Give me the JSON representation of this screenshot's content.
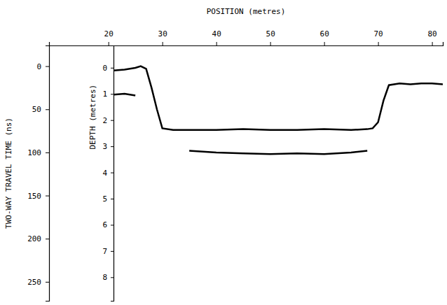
{
  "chart_data": {
    "type": "line",
    "x_label": "POSITION (metres)",
    "y_label": "TWO-WAY TRAVEL TIME (ns)",
    "y2_label": "DEPTH (metres)",
    "xlim": [
      9,
      82
    ],
    "xticks": [
      20,
      30,
      40,
      50,
      60,
      70,
      80
    ],
    "ylim": [
      -24,
      272
    ],
    "yticks": [
      0,
      50,
      100,
      150,
      200,
      250
    ],
    "y2lim": [
      -0.85,
      8.9
    ],
    "y2ticks": [
      0,
      1,
      2,
      3,
      4,
      5,
      6,
      7,
      8
    ],
    "grid": false,
    "x": [
      21,
      23,
      25,
      26,
      27,
      28,
      29,
      30,
      32,
      35,
      40,
      45,
      50,
      55,
      60,
      65,
      68,
      69,
      70,
      71,
      72,
      74,
      76,
      78,
      80,
      82
    ],
    "series": [
      {
        "color": "#000000",
        "line_style": "solid",
        "values": [
          5,
          4,
          2,
          0,
          3,
          25,
          50,
          72,
          74,
          74,
          74,
          73,
          74,
          74,
          73,
          74,
          73,
          72,
          65,
          40,
          22,
          20,
          21,
          20,
          20,
          21
        ]
      },
      {
        "color": "#000000",
        "line_style": "solid",
        "values": [
          null,
          null,
          null,
          null,
          null,
          null,
          null,
          null,
          null,
          98,
          100,
          101,
          102,
          101,
          102,
          100,
          98,
          null,
          null,
          null,
          null,
          null,
          null,
          null,
          null,
          null
        ]
      },
      {
        "color": "#000000",
        "line_style": "solid",
        "values": [
          33,
          32,
          34,
          null,
          null,
          null,
          null,
          null,
          null,
          null,
          null,
          null,
          null,
          null,
          null,
          null,
          null,
          null,
          null,
          null,
          null,
          null,
          null,
          null,
          null,
          null
        ]
      }
    ]
  }
}
